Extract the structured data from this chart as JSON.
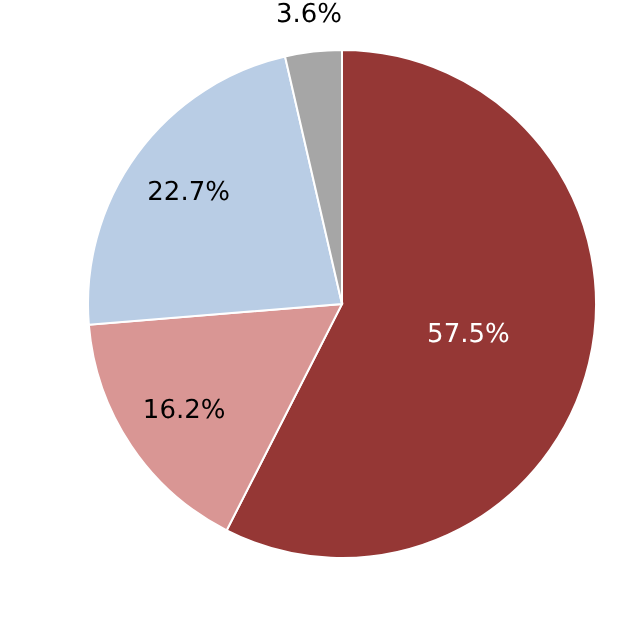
{
  "chart_data": {
    "type": "pie",
    "categories": [
      null,
      null,
      null,
      null
    ],
    "values": [
      57.5,
      16.2,
      22.7,
      3.6
    ],
    "colors": [
      "#953735",
      "#d99694",
      "#b9cde5",
      "#a6a6a6"
    ],
    "value_labels": [
      "57.5%",
      "16.2%",
      "22.7%",
      "3.6%"
    ]
  }
}
